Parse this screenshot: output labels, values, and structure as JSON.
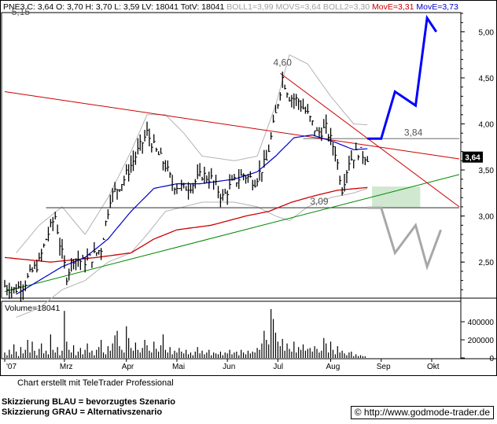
{
  "header": {
    "parts": [
      {
        "text": "PNE3 C: 3,64 O: 3,70 H: 3,70 L: 3,59 LV: 18041 TotV: 18041",
        "color": "#000000"
      },
      {
        "text": "BOLL1=3,99 MOVS=3,64 BOLL2=3,30",
        "color": "#a0a0a0"
      },
      {
        "text": "MovE=3,31",
        "color": "#cc0000"
      },
      {
        "text": "MovE=3,73",
        "color": "#0000cc"
      }
    ]
  },
  "volume_label": "Volume=18041",
  "credit": "Chart erstellt mit TeleTrader Professional",
  "legend": [
    "Skizzierung BLAU = bevorzugtes Szenario",
    "Skizzierung GRAU = Alternativszenario"
  ],
  "website": "© http://www.godmode-trader.de",
  "colors": {
    "price": "#000000",
    "ma_fast": "#0000cc",
    "ma_slow": "#cc0000",
    "bollinger": "#b4b4b4",
    "trend_green": "#008800",
    "trend_red": "#cc0000",
    "support": "#000000",
    "scenario_blue": "#0000ff",
    "scenario_grey": "#a8a8a8",
    "zone": "#cfe8cf"
  },
  "chart_data": [
    {
      "type": "line",
      "name": "price",
      "x_labels": [
        "'07",
        "Mrz",
        "Apr",
        "Mai",
        "Jun",
        "Jul",
        "Aug",
        "Sep",
        "Okt"
      ],
      "y_ticks": [
        "2,50",
        "3,00",
        "3,50",
        "4,00",
        "4,50",
        "5,00"
      ],
      "y_tick_values": [
        2.5,
        3.0,
        3.5,
        4.0,
        4.5,
        5.0
      ],
      "ylim": [
        2.1,
        5.2
      ],
      "last_price_label": "3,64",
      "annotations": [
        {
          "text": "5,15",
          "value": 5.15,
          "period": 7
        },
        {
          "text": "4,60",
          "value": 4.6,
          "period": 121
        },
        {
          "text": "3,84",
          "value": 3.84,
          "period": 178
        },
        {
          "text": "3,09",
          "value": 3.09,
          "period": 137
        }
      ],
      "horizontal_levels": [
        {
          "name": "resistance",
          "value": 3.84,
          "from_period": 130,
          "to_period": 198
        },
        {
          "name": "support",
          "value": 3.09,
          "from_period": 18,
          "to_period": 198
        }
      ],
      "trendlines": [
        {
          "name": "red-trendline-upper",
          "from": [
            0,
            4.35
          ],
          "to": [
            198,
            3.62
          ]
        },
        {
          "name": "green-trendline",
          "from": [
            0,
            2.18
          ],
          "to": [
            198,
            3.45
          ]
        },
        {
          "name": "red-trendline-steep",
          "from": [
            120,
            4.55
          ],
          "to": [
            198,
            3.1
          ]
        }
      ],
      "close_keyframes": [
        [
          0,
          2.24
        ],
        [
          4,
          2.2
        ],
        [
          8,
          2.25
        ],
        [
          12,
          2.4
        ],
        [
          15,
          2.5
        ],
        [
          18,
          2.75
        ],
        [
          22,
          3.0
        ],
        [
          24,
          2.7
        ],
        [
          27,
          2.35
        ],
        [
          30,
          2.55
        ],
        [
          34,
          2.5
        ],
        [
          38,
          2.55
        ],
        [
          42,
          2.65
        ],
        [
          46,
          3.2
        ],
        [
          52,
          3.4
        ],
        [
          58,
          3.7
        ],
        [
          62,
          3.9
        ],
        [
          66,
          3.7
        ],
        [
          70,
          3.55
        ],
        [
          73,
          3.35
        ],
        [
          78,
          3.3
        ],
        [
          82,
          3.35
        ],
        [
          86,
          3.45
        ],
        [
          90,
          3.4
        ],
        [
          95,
          3.2
        ],
        [
          99,
          3.35
        ],
        [
          104,
          3.45
        ],
        [
          109,
          3.38
        ],
        [
          114,
          3.6
        ],
        [
          118,
          4.1
        ],
        [
          121,
          4.5
        ],
        [
          124,
          4.3
        ],
        [
          128,
          4.25
        ],
        [
          132,
          4.1
        ],
        [
          136,
          3.9
        ],
        [
          140,
          3.95
        ],
        [
          144,
          3.7
        ],
        [
          147,
          3.3
        ],
        [
          150,
          3.6
        ],
        [
          154,
          3.7
        ],
        [
          158,
          3.64
        ]
      ],
      "ma_slow_keyframes": [
        [
          0,
          2.55
        ],
        [
          20,
          2.5
        ],
        [
          40,
          2.55
        ],
        [
          55,
          2.6
        ],
        [
          65,
          2.75
        ],
        [
          75,
          2.85
        ],
        [
          90,
          2.9
        ],
        [
          105,
          3.0
        ],
        [
          115,
          3.05
        ],
        [
          125,
          3.15
        ],
        [
          135,
          3.22
        ],
        [
          145,
          3.28
        ],
        [
          158,
          3.31
        ]
      ],
      "ma_fast_keyframes": [
        [
          5,
          2.15
        ],
        [
          15,
          2.3
        ],
        [
          25,
          2.45
        ],
        [
          35,
          2.55
        ],
        [
          45,
          2.75
        ],
        [
          55,
          3.05
        ],
        [
          65,
          3.3
        ],
        [
          75,
          3.35
        ],
        [
          85,
          3.35
        ],
        [
          100,
          3.4
        ],
        [
          110,
          3.48
        ],
        [
          118,
          3.65
        ],
        [
          126,
          3.85
        ],
        [
          134,
          3.88
        ],
        [
          144,
          3.8
        ],
        [
          152,
          3.72
        ],
        [
          158,
          3.73
        ]
      ],
      "boll_upper_keyframes": [
        [
          5,
          2.6
        ],
        [
          15,
          2.9
        ],
        [
          25,
          3.1
        ],
        [
          35,
          2.8
        ],
        [
          45,
          3.2
        ],
        [
          55,
          3.7
        ],
        [
          62,
          4.1
        ],
        [
          70,
          4.1
        ],
        [
          78,
          3.9
        ],
        [
          86,
          3.65
        ],
        [
          100,
          3.6
        ],
        [
          110,
          3.65
        ],
        [
          118,
          4.2
        ],
        [
          124,
          4.75
        ],
        [
          132,
          4.65
        ],
        [
          142,
          4.3
        ],
        [
          152,
          4.0
        ],
        [
          158,
          3.99
        ]
      ],
      "boll_lower_keyframes": [
        [
          5,
          1.9
        ],
        [
          15,
          2.0
        ],
        [
          25,
          2.2
        ],
        [
          35,
          2.3
        ],
        [
          45,
          2.5
        ],
        [
          55,
          2.6
        ],
        [
          62,
          2.8
        ],
        [
          70,
          3.05
        ],
        [
          78,
          3.1
        ],
        [
          86,
          3.15
        ],
        [
          100,
          3.15
        ],
        [
          110,
          3.1
        ],
        [
          118,
          3.0
        ],
        [
          124,
          2.95
        ],
        [
          132,
          3.1
        ],
        [
          142,
          3.2
        ],
        [
          152,
          3.25
        ],
        [
          158,
          3.3
        ]
      ],
      "scenario_blue": [
        [
          158,
          3.84
        ],
        [
          164,
          3.84
        ],
        [
          170,
          4.35
        ],
        [
          179,
          4.2
        ],
        [
          184,
          5.15
        ],
        [
          188,
          5.0
        ]
      ],
      "scenario_grey": [
        [
          158,
          3.09
        ],
        [
          164,
          3.09
        ],
        [
          170,
          2.6
        ],
        [
          179,
          2.9
        ],
        [
          184,
          2.45
        ],
        [
          190,
          2.85
        ]
      ]
    },
    {
      "type": "bar",
      "name": "volume",
      "y_ticks": [
        "0",
        "200000",
        "400000"
      ],
      "y_tick_values": [
        0,
        200000,
        400000
      ],
      "ylim": [
        0,
        600000
      ],
      "values": [
        60000,
        30000,
        90000,
        40000,
        150000,
        70000,
        20000,
        120000,
        50000,
        90000,
        200000,
        60000,
        180000,
        80000,
        30000,
        100000,
        160000,
        50000,
        80000,
        40000,
        260000,
        90000,
        60000,
        120000,
        30000,
        80000,
        520000,
        180000,
        90000,
        60000,
        140000,
        30000,
        70000,
        110000,
        40000,
        90000,
        160000,
        60000,
        80000,
        30000,
        90000,
        120000,
        200000,
        60000,
        40000,
        130000,
        80000,
        160000,
        250000,
        300000,
        130000,
        90000,
        60000,
        350000,
        220000,
        110000,
        80000,
        170000,
        90000,
        60000,
        110000,
        200000,
        140000,
        80000,
        60000,
        180000,
        100000,
        70000,
        140000,
        260000,
        90000,
        60000,
        120000,
        40000,
        80000,
        60000,
        110000,
        70000,
        50000,
        90000,
        40000,
        60000,
        30000,
        70000,
        120000,
        50000,
        80000,
        40000,
        60000,
        90000,
        30000,
        60000,
        50000,
        40000,
        70000,
        30000,
        60000,
        50000,
        90000,
        40000,
        60000,
        70000,
        30000,
        90000,
        60000,
        40000,
        80000,
        50000,
        70000,
        60000,
        110000,
        90000,
        160000,
        300000,
        200000,
        150000,
        540000,
        430000,
        280000,
        180000,
        130000,
        210000,
        80000,
        160000,
        100000,
        70000,
        180000,
        60000,
        120000,
        90000,
        150000,
        80000,
        100000,
        110000,
        70000,
        130000,
        100000,
        60000,
        80000,
        220000,
        160000,
        60000,
        180000,
        90000,
        40000,
        130000,
        60000,
        80000,
        50000,
        30000,
        60000,
        70000,
        20000,
        40000,
        20000,
        30000,
        20000,
        18041
      ]
    }
  ]
}
